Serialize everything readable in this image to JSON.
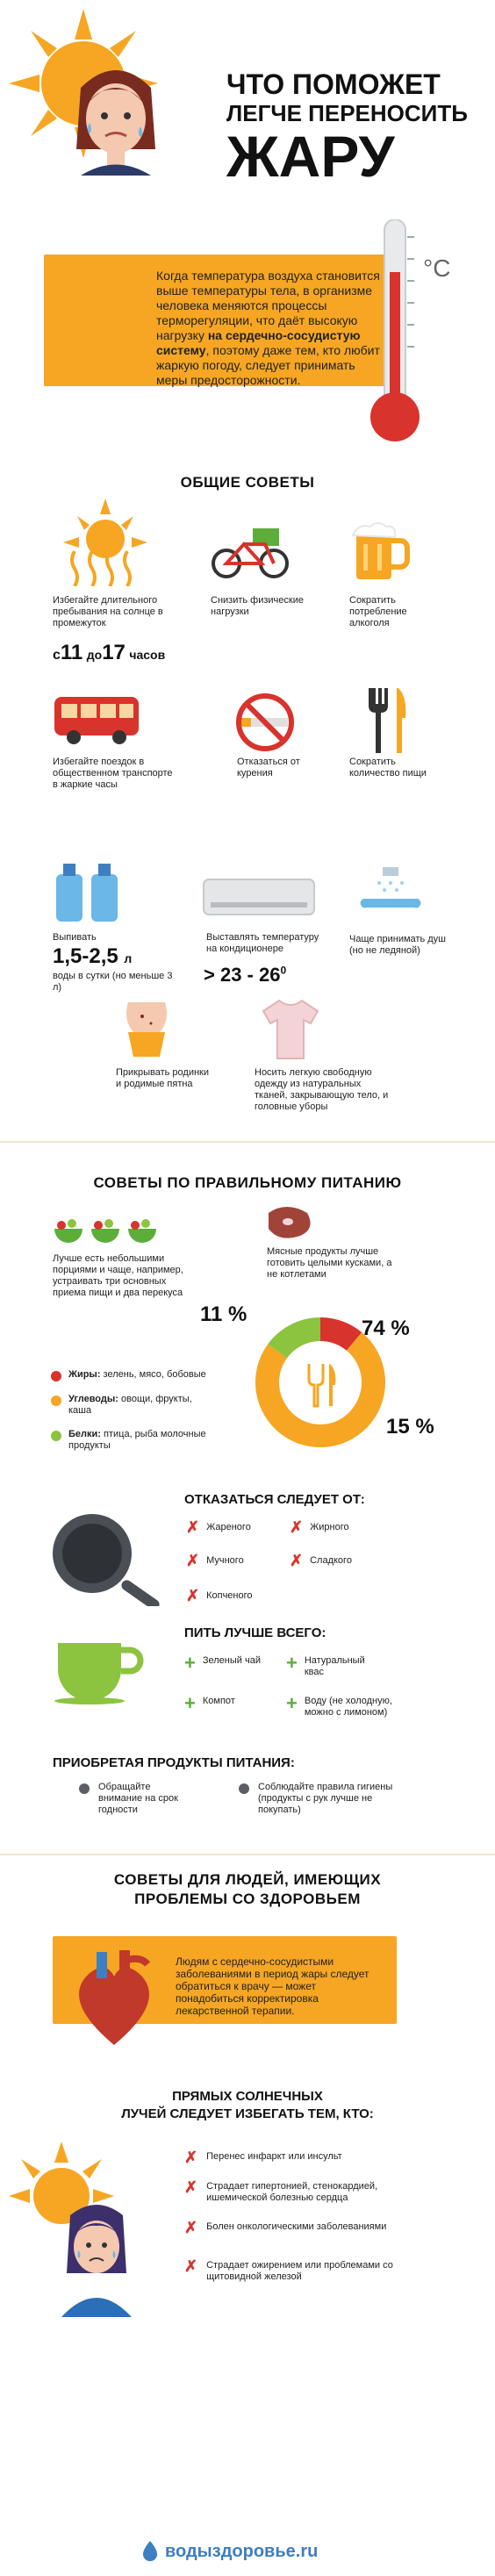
{
  "title": {
    "line1": "ЧТО ПОМОЖЕТ",
    "line2": "ЛЕГЧЕ ПЕРЕНОСИТЬ",
    "line3": "ЖАРУ"
  },
  "intro": {
    "pre": "Когда температура воздуха становится выше температуры тела, в организме человека меняются процессы терморегуляции, что даёт высокую нагрузку ",
    "highlight": "на сердечно-сосудистую систему",
    "post": ", поэтому даже тем, кто любит жаркую погоду, следует принимать меры предосторожности.",
    "unit": "°C"
  },
  "general": {
    "title": "ОБЩИЕ СОВЕТЫ",
    "sun_text": "Избегайте длительного пребывания на солнце в промежуток",
    "time_c": "с",
    "time_from": "11",
    "time_do": "до",
    "time_to": "17",
    "time_hours": "часов",
    "bike_text": "Снизить физические нагрузки",
    "beer_text": "Сократить потребление алкоголя",
    "bus_text": "Избегайте поездок в общественном транспорте в жаркие часы",
    "smoke_text": "Отказаться от курения",
    "fork_text": "Сократить количество пищи",
    "water_label": "Выпивать",
    "water_value": "1,5-2,5",
    "water_unit": "л",
    "water_sub": "воды  в сутки (но меньше 3 л)",
    "ac_text": "Выставлять температуру на кондиционере",
    "ac_value": "> 23 - 26",
    "ac_deg": "0",
    "shower_text": "Чаще принимать душ (но не ледяной)",
    "body_text": "Прикрывать родинки и родимые пятна",
    "shirt_text": "Носить легкую свободную одежду из натуральных тканей, закрывающую тело, и головные уборы"
  },
  "nutrition": {
    "title": "СОВЕТЫ ПО ПРАВИЛЬНОМУ ПИТАНИЮ",
    "salad_text": "Лучше есть небольшими порциями и чаще, например, устраивать три основных приема пищи и два перекуса",
    "meat_text": "Мясные продукты лучше готовить целыми кусками, а не котлетами",
    "pct_fat": "11 %",
    "pct_carb": "74 %",
    "pct_protein": "15 %",
    "legend": [
      {
        "label": "Жиры:",
        "text": " зелень, мясо, бобовые",
        "color": "#d8332c"
      },
      {
        "label": "Углеводы:",
        "text": " овощи, фрукты, каша",
        "color": "#f6a623"
      },
      {
        "label": "Белки:",
        "text": " птица, рыба молочные продукты",
        "color": "#8cc43f"
      }
    ],
    "chart_values": [
      11,
      74,
      15
    ]
  },
  "refuse": {
    "title": "ОТКАЗАТЬСЯ СЛЕДУЕТ ОТ:",
    "items": [
      "Жареного",
      "Жирного",
      "Мучного",
      "Сладкого",
      "Копченого"
    ]
  },
  "drink": {
    "title": "ПИТЬ ЛУЧШЕ ВСЕГО:",
    "items": [
      "Зеленый чай",
      "Натуральный квас",
      "Компот",
      "Воду (не холодную, можно с лимоном)"
    ]
  },
  "buying": {
    "title": "ПРИОБРЕТАЯ ПРОДУКТЫ ПИТАНИЯ:",
    "items": [
      "Обращайте внимание на срок годности",
      "Соблюдайте правила гигиены (продукты с рук лучше не покупать)"
    ]
  },
  "health": {
    "title1": "СОВЕТЫ ДЛЯ ЛЮДЕЙ, ИМЕЮЩИХ",
    "title2": "ПРОБЛЕМЫ СО ЗДОРОВЬЕМ",
    "heart_text": "Людям с сердечно-сосудистыми заболеваниями в период жары следует обратиться к врачу — может понадобиться корректировка лекарственной терапии.",
    "sun_title1": "ПРЯМЫХ СОЛНЕЧНЫХ",
    "sun_title2": "ЛУЧЕЙ СЛЕДУЕТ ИЗБЕГАТЬ ТЕМ, КТО:",
    "items": [
      "Перенес инфаркт или инсульт",
      "Страдает гипертонией, стенокардией, ишемической болезнью сердца",
      "Болен онкологическими заболеваниями",
      "Страдает ожирением или проблемами со щитовидной железой"
    ]
  },
  "footer": {
    "brand": "водыздоровье.ru"
  },
  "colors": {
    "orange": "#f6a623",
    "red": "#d8332c",
    "green": "#5cad3a",
    "dark": "#111111"
  }
}
